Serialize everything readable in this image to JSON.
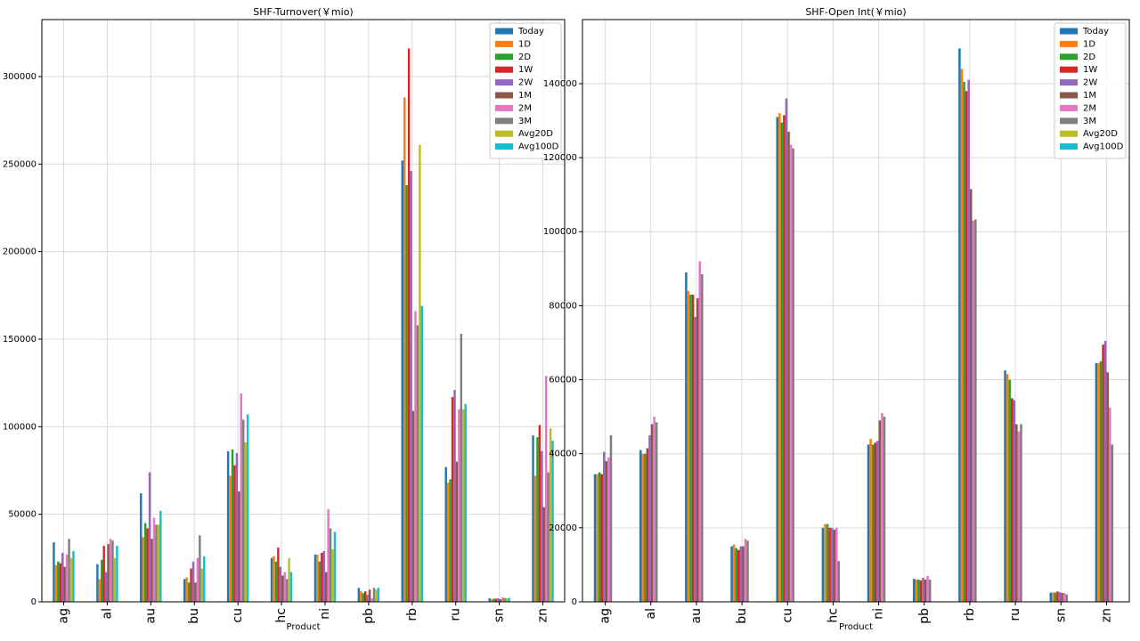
{
  "chart_data": [
    {
      "type": "bar",
      "title": "SHF-Turnover(￥mio)",
      "x_label": "Product",
      "categories": [
        "ag",
        "al",
        "au",
        "bu",
        "cu",
        "hc",
        "ni",
        "pb",
        "rb",
        "ru",
        "sn",
        "zn"
      ],
      "series": [
        {
          "name": "Today",
          "color": "#1f77b4",
          "values": [
            34000,
            21500,
            62000,
            13000,
            86000,
            25000,
            27000,
            8000,
            252000,
            77000,
            2000,
            95000
          ]
        },
        {
          "name": "1D",
          "color": "#ff7f0e",
          "values": [
            21000,
            13000,
            37000,
            14000,
            72000,
            26000,
            27000,
            6000,
            288000,
            68000,
            1500,
            72000
          ]
        },
        {
          "name": "2D",
          "color": "#2ca02c",
          "values": [
            23000,
            24000,
            45000,
            11000,
            87000,
            23000,
            23000,
            5000,
            238000,
            70000,
            1800,
            94000
          ]
        },
        {
          "name": "1W",
          "color": "#d62728",
          "values": [
            22000,
            32000,
            42000,
            19000,
            78000,
            31000,
            28000,
            6000,
            316000,
            117000,
            1800,
            101000
          ]
        },
        {
          "name": "2W",
          "color": "#9467bd",
          "values": [
            28000,
            17000,
            74000,
            23000,
            85000,
            20000,
            29000,
            4000,
            246000,
            121000,
            2000,
            86000
          ]
        },
        {
          "name": "1M",
          "color": "#8c564b",
          "values": [
            20000,
            33000,
            36000,
            11000,
            63000,
            15000,
            17000,
            7000,
            109000,
            80000,
            1500,
            54000
          ]
        },
        {
          "name": "2M",
          "color": "#e377c2",
          "values": [
            27000,
            36000,
            48000,
            25000,
            119000,
            17000,
            53000,
            2000,
            166000,
            110000,
            2500,
            129000
          ]
        },
        {
          "name": "3M",
          "color": "#7f7f7f",
          "values": [
            36000,
            35000,
            44000,
            38000,
            104000,
            13000,
            42000,
            8000,
            158000,
            153000,
            2200,
            74000
          ]
        },
        {
          "name": "Avg20D",
          "color": "#bcbd22",
          "values": [
            25000,
            25000,
            44000,
            19000,
            91000,
            25000,
            30000,
            7000,
            261000,
            110000,
            2000,
            99000
          ]
        },
        {
          "name": "Avg100D",
          "color": "#17becf",
          "values": [
            29000,
            32000,
            52000,
            26000,
            107000,
            17000,
            40000,
            8000,
            169000,
            113000,
            2300,
            92000
          ]
        }
      ],
      "ylim": [
        0,
        332500
      ],
      "yticks": [
        0,
        50000,
        100000,
        150000,
        200000,
        250000,
        300000
      ],
      "grid": true,
      "legend": "upper right"
    },
    {
      "type": "bar",
      "title": "SHF-Open Int(￥mio)",
      "x_label": "Product",
      "categories": [
        "ag",
        "al",
        "au",
        "bu",
        "cu",
        "hc",
        "ni",
        "pb",
        "rb",
        "ru",
        "sn",
        "zn"
      ],
      "series": [
        {
          "name": "Today",
          "color": "#1f77b4",
          "values": [
            34500,
            41000,
            89000,
            15000,
            131000,
            20000,
            42500,
            6200,
            149500,
            62500,
            2500,
            64500
          ]
        },
        {
          "name": "1D",
          "color": "#ff7f0e",
          "values": [
            34500,
            40000,
            84000,
            15500,
            132000,
            21000,
            44000,
            6000,
            144000,
            61500,
            2500,
            64500
          ]
        },
        {
          "name": "2D",
          "color": "#2ca02c",
          "values": [
            35000,
            40000,
            83000,
            14500,
            129500,
            21000,
            42500,
            6000,
            140500,
            60000,
            2500,
            65000
          ]
        },
        {
          "name": "1W",
          "color": "#d62728",
          "values": [
            34500,
            41500,
            83000,
            14000,
            131500,
            20000,
            43000,
            5800,
            138000,
            55000,
            2800,
            69500
          ]
        },
        {
          "name": "2W",
          "color": "#9467bd",
          "values": [
            40500,
            45000,
            77000,
            15000,
            136000,
            20000,
            43500,
            6500,
            141000,
            54500,
            2600,
            70500
          ]
        },
        {
          "name": "1M",
          "color": "#8c564b",
          "values": [
            38000,
            48000,
            82000,
            15000,
            127000,
            19500,
            49000,
            6000,
            111500,
            48000,
            2400,
            62000
          ]
        },
        {
          "name": "2M",
          "color": "#e377c2",
          "values": [
            39000,
            50000,
            92000,
            17000,
            123500,
            20000,
            51000,
            7000,
            103000,
            46000,
            2400,
            52500
          ]
        },
        {
          "name": "3M",
          "color": "#7f7f7f",
          "values": [
            45000,
            48500,
            88500,
            16500,
            122500,
            11000,
            50000,
            6000,
            103300,
            48000,
            2000,
            42500
          ]
        },
        {
          "name": "Avg20D",
          "color": "#bcbd22",
          "values": [
            null,
            null,
            null,
            null,
            null,
            null,
            null,
            null,
            null,
            null,
            null,
            null
          ]
        },
        {
          "name": "Avg100D",
          "color": "#17becf",
          "values": [
            null,
            null,
            null,
            null,
            null,
            null,
            null,
            null,
            null,
            null,
            null,
            null
          ]
        }
      ],
      "ylim": [
        0,
        157300
      ],
      "yticks": [
        0,
        20000,
        40000,
        60000,
        80000,
        100000,
        120000,
        140000
      ],
      "grid": true,
      "legend": "upper right"
    }
  ]
}
